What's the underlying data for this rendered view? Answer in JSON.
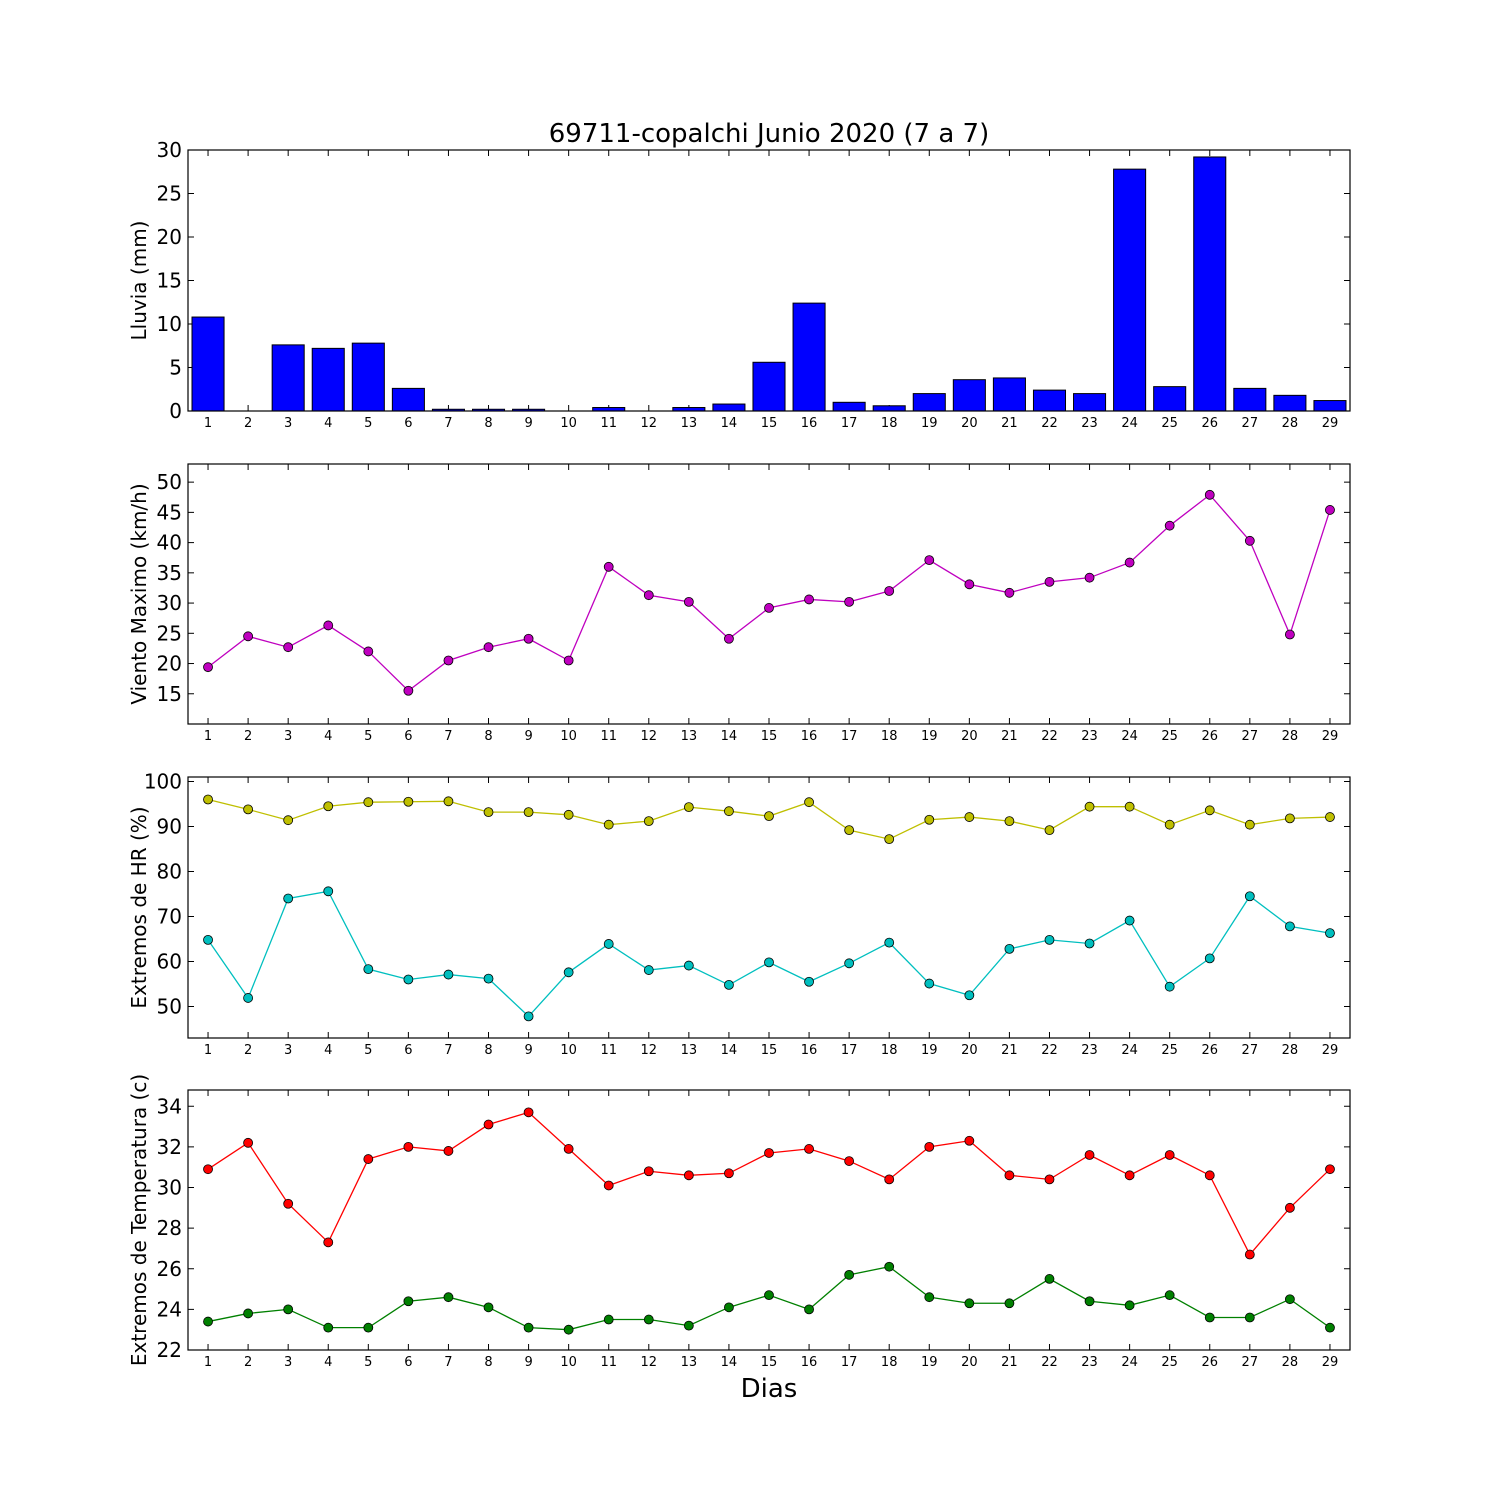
{
  "title": "69711-copalchi Junio 2020  (7 a 7)",
  "xlabel": "Dias",
  "chart_data": [
    {
      "type": "bar",
      "ylabel": "Lluvia (mm)",
      "ylim": [
        0,
        30
      ],
      "yticks": [
        0,
        5,
        10,
        15,
        20,
        25,
        30
      ],
      "x": [
        1,
        2,
        3,
        4,
        5,
        6,
        7,
        8,
        9,
        10,
        11,
        12,
        13,
        14,
        15,
        16,
        17,
        18,
        19,
        20,
        21,
        22,
        23,
        24,
        25,
        26,
        27,
        28,
        29
      ],
      "series": [
        {
          "color": "#0000ff",
          "values": [
            10.8,
            0.0,
            7.6,
            7.2,
            7.8,
            2.6,
            0.2,
            0.2,
            0.2,
            0.0,
            0.4,
            0.0,
            0.4,
            0.8,
            5.6,
            12.4,
            1.0,
            0.6,
            2.0,
            3.6,
            3.8,
            2.4,
            2.0,
            27.8,
            2.8,
            29.2,
            2.6,
            1.8,
            1.2
          ]
        }
      ]
    },
    {
      "type": "line",
      "ylabel": "Viento Maximo (km/h)",
      "ylim": [
        10,
        53
      ],
      "yticks": [
        15,
        20,
        25,
        30,
        35,
        40,
        45,
        50
      ],
      "x": [
        1,
        2,
        3,
        4,
        5,
        6,
        7,
        8,
        9,
        10,
        11,
        12,
        13,
        14,
        15,
        16,
        17,
        18,
        19,
        20,
        21,
        22,
        23,
        24,
        25,
        26,
        27,
        28,
        29
      ],
      "series": [
        {
          "color": "#bf00bf",
          "values": [
            19.4,
            24.5,
            22.7,
            26.3,
            22.0,
            15.5,
            20.5,
            22.7,
            24.1,
            20.5,
            36.0,
            31.3,
            30.2,
            24.1,
            29.2,
            30.6,
            30.2,
            32.0,
            37.1,
            33.1,
            31.7,
            33.5,
            34.2,
            36.7,
            42.8,
            47.9,
            40.3,
            24.8,
            45.4
          ]
        }
      ]
    },
    {
      "type": "line",
      "ylabel": "Extremos de HR (%)",
      "ylim": [
        43,
        101
      ],
      "yticks": [
        50,
        60,
        70,
        80,
        90,
        100
      ],
      "x": [
        1,
        2,
        3,
        4,
        5,
        6,
        7,
        8,
        9,
        10,
        11,
        12,
        13,
        14,
        15,
        16,
        17,
        18,
        19,
        20,
        21,
        22,
        23,
        24,
        25,
        26,
        27,
        28,
        29
      ],
      "series": [
        {
          "color": "#bfbf00",
          "values": [
            96,
            93.8,
            91.4,
            94.5,
            95.4,
            95.5,
            95.6,
            93.2,
            93.2,
            92.6,
            90.4,
            91.2,
            94.3,
            93.4,
            92.3,
            95.4,
            89.2,
            87.2,
            91.5,
            92.1,
            91.2,
            89.2,
            94.4,
            94.4,
            90.4,
            93.6,
            90.4,
            91.8,
            92.1
          ]
        },
        {
          "color": "#00bfbf",
          "values": [
            64.8,
            51.9,
            74.0,
            75.6,
            58.3,
            56.0,
            57.1,
            56.2,
            47.8,
            57.6,
            63.9,
            58.1,
            59.1,
            54.8,
            59.8,
            55.5,
            59.6,
            64.2,
            55.1,
            52.5,
            62.8,
            64.8,
            64.0,
            69.1,
            54.4,
            60.7,
            74.5,
            67.8,
            66.3
          ]
        }
      ]
    },
    {
      "type": "line",
      "ylabel": "Extremos de Temperatura (c)",
      "ylim": [
        22,
        34.8
      ],
      "yticks": [
        22,
        24,
        26,
        28,
        30,
        32,
        34
      ],
      "x": [
        1,
        2,
        3,
        4,
        5,
        6,
        7,
        8,
        9,
        10,
        11,
        12,
        13,
        14,
        15,
        16,
        17,
        18,
        19,
        20,
        21,
        22,
        23,
        24,
        25,
        26,
        27,
        28,
        29
      ],
      "series": [
        {
          "color": "#ff0000",
          "values": [
            30.9,
            32.2,
            29.2,
            27.3,
            31.4,
            32.0,
            31.8,
            33.1,
            33.7,
            31.9,
            30.1,
            30.8,
            30.6,
            30.7,
            31.7,
            31.9,
            31.3,
            30.4,
            32.0,
            32.3,
            30.6,
            30.4,
            31.6,
            30.6,
            31.6,
            30.6,
            26.7,
            29.0,
            30.9
          ]
        },
        {
          "color": "#008000",
          "values": [
            23.4,
            23.8,
            24.0,
            23.1,
            23.1,
            24.4,
            24.6,
            24.1,
            23.1,
            23.0,
            23.5,
            23.5,
            23.2,
            24.1,
            24.7,
            24.0,
            25.7,
            26.1,
            24.6,
            24.3,
            24.3,
            25.5,
            24.4,
            24.2,
            24.7,
            23.6,
            23.6,
            24.5,
            23.1
          ]
        }
      ]
    }
  ]
}
